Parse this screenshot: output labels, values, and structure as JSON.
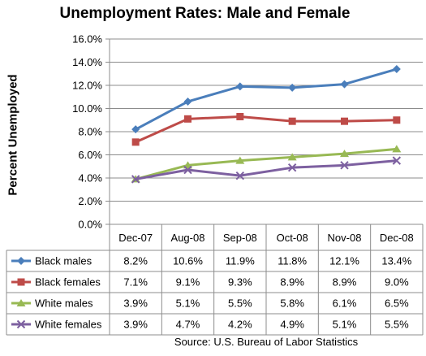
{
  "chart_data": {
    "type": "line",
    "title": "Unemployment Rates: Male and Female",
    "ylabel": "Percent Unemployed",
    "xlabel": "",
    "source": "Source: U.S. Bureau of Labor Statistics",
    "categories": [
      "Dec-07",
      "Aug-08",
      "Sep-08",
      "Oct-08",
      "Nov-08",
      "Dec-08"
    ],
    "ylim": [
      0,
      16
    ],
    "yticks": [
      "0.0%",
      "2.0%",
      "4.0%",
      "6.0%",
      "8.0%",
      "10.0%",
      "12.0%",
      "14.0%",
      "16.0%"
    ],
    "grid": true,
    "legend_placement": "data-table",
    "series": [
      {
        "name": "Black males",
        "values": [
          8.2,
          10.6,
          11.9,
          11.8,
          12.1,
          13.4
        ],
        "labels": [
          "8.2%",
          "10.6%",
          "11.9%",
          "11.8%",
          "12.1%",
          "13.4%"
        ],
        "color": "#4a7ebb",
        "marker": "diamond"
      },
      {
        "name": "Black females",
        "values": [
          7.1,
          9.1,
          9.3,
          8.9,
          8.9,
          9.0
        ],
        "labels": [
          "7.1%",
          "9.1%",
          "9.3%",
          "8.9%",
          "8.9%",
          "9.0%"
        ],
        "color": "#be4b48",
        "marker": "square"
      },
      {
        "name": "White males",
        "values": [
          3.9,
          5.1,
          5.5,
          5.8,
          6.1,
          6.5
        ],
        "labels": [
          "3.9%",
          "5.1%",
          "5.5%",
          "5.8%",
          "6.1%",
          "6.5%"
        ],
        "color": "#98b954",
        "marker": "triangle"
      },
      {
        "name": "White females",
        "values": [
          3.9,
          4.7,
          4.2,
          4.9,
          5.1,
          5.5
        ],
        "labels": [
          "3.9%",
          "4.7%",
          "4.2%",
          "4.9%",
          "5.1%",
          "5.5%"
        ],
        "color": "#7d60a0",
        "marker": "x"
      }
    ]
  }
}
